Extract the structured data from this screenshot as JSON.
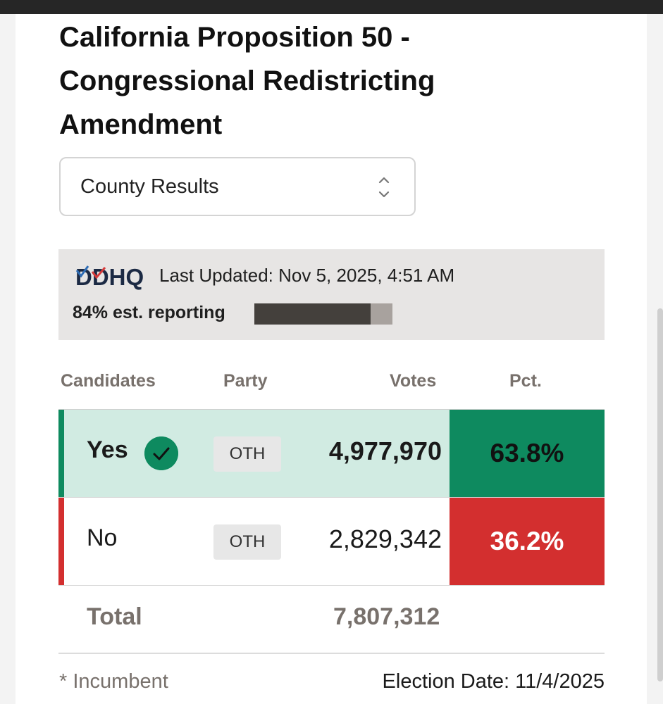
{
  "title": "California Proposition 50 - Congressional Redistricting Amendment",
  "view_select": {
    "selected": "County Results"
  },
  "source": {
    "logo_text": "DDHQ",
    "last_updated": "Last Updated: Nov 5, 2025, 4:51 AM",
    "reporting_text": "84% est. reporting",
    "reporting_fraction": 0.84
  },
  "table": {
    "headers": {
      "candidates": "Candidates",
      "party": "Party",
      "votes": "Votes",
      "pct": "Pct."
    },
    "rows": [
      {
        "name": "Yes",
        "party": "OTH",
        "votes": "4,977,970",
        "pct": "63.8%",
        "winner": true,
        "color": "#0e8a5f"
      },
      {
        "name": "No",
        "party": "OTH",
        "votes": "2,829,342",
        "pct": "36.2%",
        "winner": false,
        "color": "#d32f2f"
      }
    ],
    "total_label": "Total",
    "total_votes": "7,807,312"
  },
  "footer": {
    "incumbent_note": "* Incumbent",
    "election_date": "Election Date: 11/4/2025"
  },
  "colors": {
    "yes_row_bg": "#d1ebe2",
    "yes_accent": "#0e8a5f",
    "no_accent": "#d32f2f",
    "muted_text": "#78716c"
  },
  "icons": {
    "sort": "chevron-up-down-icon",
    "winner": "check-circle-icon"
  }
}
